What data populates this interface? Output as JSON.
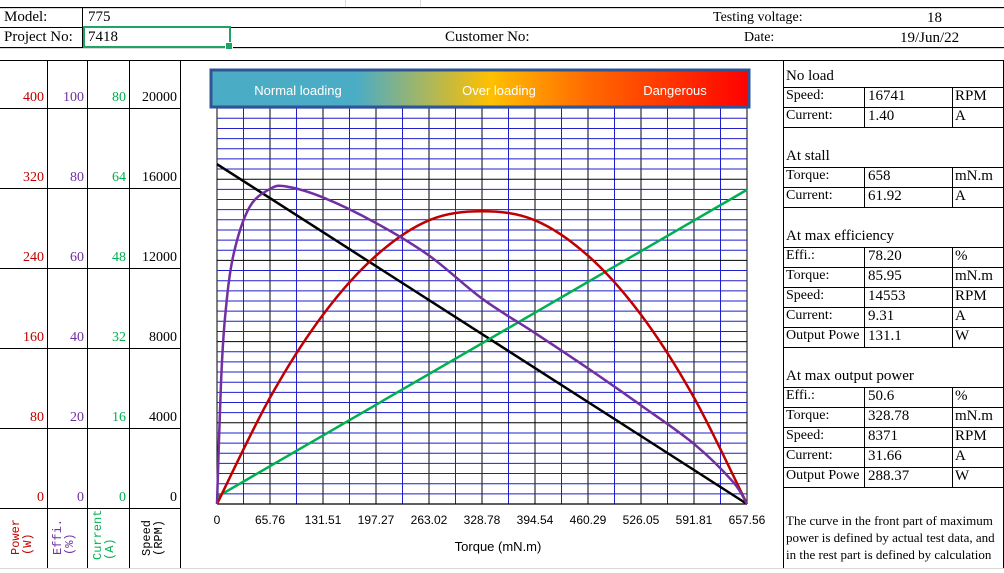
{
  "header": {
    "model_label": "Model:",
    "model_value": "775",
    "project_label": "Project No:",
    "project_value": "7418",
    "customer_label": "Customer No:",
    "voltage_label": "Testing voltage:",
    "voltage_value": "18",
    "date_label": "Date:",
    "date_value": "19/Jun/22"
  },
  "banner": {
    "normal": "Normal loading",
    "over": "Over loading",
    "danger": "Dangerous"
  },
  "axes": {
    "power": {
      "label": "Power\n(W)",
      "ticks": [
        "400",
        "320",
        "240",
        "160",
        "80",
        "0"
      ],
      "color": "#c00000"
    },
    "effi": {
      "label": "Effi.\n(%)",
      "ticks": [
        "100",
        "80",
        "60",
        "40",
        "20",
        "0"
      ],
      "color": "#7030a0"
    },
    "current": {
      "label": "Current\n(A)",
      "ticks": [
        "80",
        "64",
        "48",
        "32",
        "16",
        "0"
      ],
      "color": "#00b050"
    },
    "speed": {
      "label": "Speed\n(RPM)",
      "ticks": [
        "20000",
        "16000",
        "12000",
        "8000",
        "4000",
        "0"
      ],
      "color": "#000000"
    },
    "x_ticks": [
      "0",
      "65.76",
      "131.51",
      "197.27",
      "263.02",
      "328.78",
      "394.54",
      "460.29",
      "526.05",
      "591.81",
      "657.56"
    ],
    "x_label": "Torque (mN.m)"
  },
  "chart_data": {
    "type": "line",
    "xlabel": "Torque (mN.m)",
    "xlim": [
      0,
      657.56
    ],
    "series": [
      {
        "name": "Speed (RPM)",
        "color": "#000000",
        "ylim": [
          0,
          20000
        ],
        "x": [
          0,
          657.56
        ],
        "values": [
          16741,
          0
        ]
      },
      {
        "name": "Current (A)",
        "color": "#00b050",
        "ylim": [
          0,
          80
        ],
        "x": [
          0,
          657.56
        ],
        "values": [
          1.4,
          61.92
        ]
      },
      {
        "name": "Power (W)",
        "color": "#c00000",
        "ylim": [
          0,
          400
        ],
        "x": [
          0,
          65.76,
          131.51,
          197.27,
          263.02,
          328.78,
          394.54,
          460.29,
          526.05,
          591.81,
          657.56
        ],
        "values": [
          0,
          104.8,
          186.4,
          244.6,
          279.5,
          288.4,
          279.5,
          244.6,
          186.4,
          104.8,
          0
        ]
      },
      {
        "name": "Effi. (%)",
        "color": "#7030a0",
        "ylim": [
          0,
          100
        ],
        "x": [
          0,
          5,
          10,
          20,
          40,
          65.76,
          85.95,
          131.51,
          197.27,
          263.02,
          328.78,
          394.54,
          460.29,
          526.05,
          591.81,
          640,
          657.56
        ],
        "values": [
          0,
          30,
          46,
          61,
          73,
          77.6,
          78.2,
          75.5,
          69.2,
          61.2,
          50.6,
          42.1,
          33.4,
          24.3,
          14.8,
          5.5,
          0
        ]
      }
    ]
  },
  "right_panel": {
    "no_load": {
      "title": "No load",
      "rows": [
        {
          "label": "Speed:",
          "value": "16741",
          "unit": "RPM"
        },
        {
          "label": "Current:",
          "value": "1.40",
          "unit": "A"
        }
      ]
    },
    "at_stall": {
      "title": "At stall",
      "rows": [
        {
          "label": "Torque:",
          "value": "658",
          "unit": "mN.m"
        },
        {
          "label": "Current:",
          "value": "61.92",
          "unit": "A"
        }
      ]
    },
    "max_eff": {
      "title": "At max efficiency",
      "rows": [
        {
          "label": "Effi.:",
          "value": "78.20",
          "unit": "%"
        },
        {
          "label": "Torque:",
          "value": "85.95",
          "unit": "mN.m"
        },
        {
          "label": "Speed:",
          "value": "14553",
          "unit": "RPM"
        },
        {
          "label": "Current:",
          "value": "9.31",
          "unit": "A"
        },
        {
          "label": "Output Powe",
          "value": "131.1",
          "unit": "W"
        }
      ]
    },
    "max_power": {
      "title": "At max output power",
      "rows": [
        {
          "label": "Effi.:",
          "value": "50.6",
          "unit": "%"
        },
        {
          "label": "Torque:",
          "value": "328.78",
          "unit": "mN.m"
        },
        {
          "label": "Speed:",
          "value": "8371",
          "unit": "RPM"
        },
        {
          "label": "Current:",
          "value": "31.66",
          "unit": "A"
        },
        {
          "label": "Output Powe",
          "value": "288.37",
          "unit": "W"
        }
      ]
    },
    "note": "The curve in the front part of maximum power is defined by actual test data, and in the rest part is defined by calculation"
  }
}
